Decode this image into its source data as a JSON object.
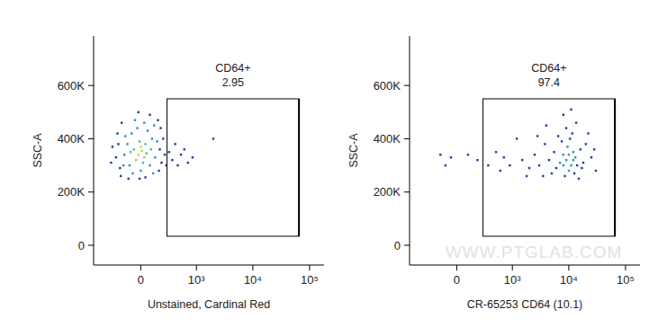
{
  "chart_data": [
    {
      "type": "scatter",
      "xlabel": "Unstained, Cardinal Red",
      "ylabel": "SSC-A",
      "xlim": [
        -700,
        180000
      ],
      "ylim": [
        -74000,
        786000
      ],
      "xticks": [
        0,
        {
          "value": 1000,
          "label": "10³"
        },
        {
          "value": 10000,
          "label": "10⁴"
        },
        {
          "value": 100000,
          "label": "10⁵"
        }
      ],
      "yticks": [
        0,
        {
          "value": 200000,
          "label": "200K"
        },
        {
          "value": 400000,
          "label": "400K"
        },
        {
          "value": 600000,
          "label": "600K"
        }
      ],
      "gates": [
        {
          "name": "CD64+",
          "percent": 2.95,
          "x": [
            270,
            65000
          ],
          "y": [
            34000,
            550000
          ]
        }
      ],
      "series": [
        {
          "marker": "square",
          "x": [
            -20,
            10,
            30,
            -40,
            0,
            50,
            -60,
            20,
            -10,
            40,
            -100,
            80,
            -120,
            100,
            -80,
            60,
            -150,
            130,
            0,
            -30,
            90,
            -90,
            110,
            -70,
            150,
            -140,
            30,
            -50,
            120,
            -160,
            -250,
            -220,
            -200,
            -230,
            200,
            180,
            220,
            170,
            -180,
            160,
            -10,
            40,
            -110,
            80,
            -20,
            240,
            260,
            300,
            350,
            400,
            450,
            520,
            600,
            700,
            850,
            2000,
            -300,
            -320,
            190,
            -190
          ],
          "y": [
            340000,
            355000,
            330000,
            320000,
            370000,
            345000,
            360000,
            310000,
            390000,
            380000,
            300000,
            300000,
            380000,
            400000,
            420000,
            430000,
            340000,
            330000,
            280000,
            440000,
            360000,
            350000,
            270000,
            270000,
            390000,
            410000,
            460000,
            470000,
            450000,
            300000,
            330000,
            380000,
            290000,
            420000,
            310000,
            360000,
            400000,
            280000,
            460000,
            470000,
            250000,
            255000,
            250000,
            490000,
            500000,
            340000,
            300000,
            350000,
            320000,
            380000,
            300000,
            340000,
            360000,
            310000,
            330000,
            400000,
            370000,
            310000,
            440000,
            260000
          ],
          "colors": [
            "#b6e22e",
            "#b6e22e",
            "#8fd84a",
            "#8fd84a",
            "#b6e22e",
            "#3ec48b",
            "#3ec48b",
            "#3ec48b",
            "#3ec48b",
            "#3ec48b",
            "#2e8fb8",
            "#2e8fb8",
            "#2e8fb8",
            "#2e8fb8",
            "#2e8fb8",
            "#2e8fb8",
            "#2e8fb8",
            "#2e8fb8",
            "#2e8fb8",
            "#2e8fb8",
            "#3ec48b",
            "#3ec48b",
            "#2e8fb8",
            "#2e8fb8",
            "#2e8fb8",
            "#2e8fb8",
            "#2e8fb8",
            "#2e8fb8",
            "#2e8fb8",
            "#2e8fb8",
            "#1f3c9c",
            "#1f3c9c",
            "#1f3c9c",
            "#1f3c9c",
            "#1f3c9c",
            "#1f3c9c",
            "#1f3c9c",
            "#1f3c9c",
            "#1f3c9c",
            "#1f3c9c",
            "#1f3c9c",
            "#1f3c9c",
            "#1f3c9c",
            "#1f3c9c",
            "#1f3c9c",
            "#1f3c9c",
            "#1f3c9c",
            "#1f3c9c",
            "#1f3c9c",
            "#1f3c9c",
            "#1f3c9c",
            "#1f3c9c",
            "#1f3c9c",
            "#1f3c9c",
            "#1f3c9c",
            "#1f3c9c",
            "#1f3c9c",
            "#1f3c9c",
            "#1f3c9c",
            "#1f3c9c"
          ]
        }
      ]
    },
    {
      "type": "scatter",
      "xlabel": "CR-65253 CD64 (10.1)",
      "ylabel": "SSC-A",
      "watermark": "WWW.PTGLAB.COM",
      "xlim": [
        -700,
        180000
      ],
      "ylim": [
        -74000,
        786000
      ],
      "xticks": [
        0,
        {
          "value": 1000,
          "label": "10³"
        },
        {
          "value": 10000,
          "label": "10⁴"
        },
        {
          "value": 100000,
          "label": "10⁵"
        }
      ],
      "yticks": [
        0,
        {
          "value": 200000,
          "label": "200K"
        },
        {
          "value": 400000,
          "label": "400K"
        },
        {
          "value": 600000,
          "label": "600K"
        }
      ],
      "gates": [
        {
          "name": "CD64+",
          "percent": 97.4,
          "x": [
            270,
            65000
          ],
          "y": [
            34000,
            550000
          ]
        }
      ],
      "series": [
        {
          "marker": "square",
          "x": [
            9000,
            11000,
            8000,
            12000,
            10000,
            7000,
            13000,
            9500,
            6000,
            14000,
            10500,
            8500,
            16000,
            5500,
            12500,
            7500,
            11500,
            18000,
            4500,
            15000,
            9000,
            20000,
            5000,
            13500,
            6500,
            17000,
            10000,
            8000,
            12000,
            3800,
            3000,
            2500,
            2000,
            1500,
            25000,
            30000,
            1200,
            900,
            22000,
            4000,
            700,
            500,
            3500,
            2800,
            11000,
            8000,
            350,
            200,
            100,
            -50,
            -150,
            -100,
            1800,
            600,
            28000
          ],
          "y": [
            320000,
            300000,
            340000,
            350000,
            280000,
            310000,
            330000,
            370000,
            290000,
            300000,
            400000,
            260000,
            360000,
            350000,
            270000,
            390000,
            420000,
            310000,
            320000,
            250000,
            440000,
            380000,
            270000,
            460000,
            410000,
            290000,
            340000,
            300000,
            320000,
            380000,
            300000,
            340000,
            290000,
            320000,
            330000,
            280000,
            400000,
            300000,
            420000,
            450000,
            330000,
            350000,
            260000,
            410000,
            510000,
            490000,
            300000,
            320000,
            340000,
            330000,
            340000,
            300000,
            260000,
            280000,
            360000
          ],
          "colors": [
            "#2e8fb8",
            "#2e8fb8",
            "#2e8fb8",
            "#2e8fb8",
            "#2e8fb8",
            "#2e8fb8",
            "#2e8fb8",
            "#2e8fb8",
            "#1f3c9c",
            "#1f3c9c",
            "#1f3c9c",
            "#1f3c9c",
            "#1f3c9c",
            "#1f3c9c",
            "#1f3c9c",
            "#1f3c9c",
            "#1f3c9c",
            "#1f3c9c",
            "#1f3c9c",
            "#1f3c9c",
            "#1f3c9c",
            "#1f3c9c",
            "#1f3c9c",
            "#1f3c9c",
            "#1f3c9c",
            "#1f3c9c",
            "#2e8fb8",
            "#2e8fb8",
            "#2e8fb8",
            "#1f3c9c",
            "#1f3c9c",
            "#1f3c9c",
            "#1f3c9c",
            "#1f3c9c",
            "#1f3c9c",
            "#1f3c9c",
            "#1f3c9c",
            "#1f3c9c",
            "#1f3c9c",
            "#1f3c9c",
            "#1f3c9c",
            "#1f3c9c",
            "#1f3c9c",
            "#1f3c9c",
            "#1f3c9c",
            "#1f3c9c",
            "#1f3c9c",
            "#1f3c9c",
            "#1f3c9c",
            "#1f3c9c",
            "#1f3c9c",
            "#1f3c9c",
            "#1f3c9c",
            "#1f3c9c",
            "#1f3c9c"
          ]
        }
      ]
    }
  ]
}
